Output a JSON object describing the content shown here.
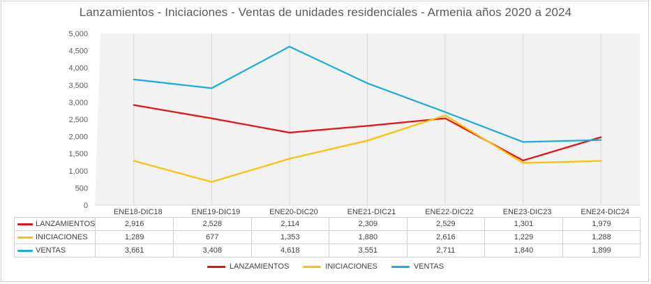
{
  "chart_data": {
    "type": "line",
    "title": "Lanzamientos  - Iniciaciones - Ventas de unidades residenciales  - Armenia años 2020 a 2024",
    "xlabel": "",
    "ylabel": "",
    "categories": [
      "ENE18-DIC18",
      "ENE19-DIC19",
      "ENE20-DIC20",
      "ENE21-DIC21",
      "ENE22-DIC22",
      "ENE23-DIC23",
      "ENE24-DIC24"
    ],
    "ylim": [
      0,
      5000
    ],
    "yticks": [
      "0",
      "500",
      "1,000",
      "1,500",
      "2,000",
      "2,500",
      "3,000",
      "3,500",
      "4,000",
      "4,500",
      "5,000"
    ],
    "grid": "vertical",
    "legend": "bottom",
    "series": [
      {
        "name": "LANZAMIENTOS",
        "color": "#e81010",
        "values": [
          2916,
          2528,
          2114,
          2309,
          2529,
          1301,
          1979
        ],
        "labels": [
          "2,916",
          "2,528",
          "2,114",
          "2,309",
          "2,529",
          "1,301",
          "1,979"
        ]
      },
      {
        "name": "INICIACIONES",
        "color": "#ffc000",
        "values": [
          1289,
          677,
          1353,
          1880,
          2616,
          1229,
          1288
        ],
        "labels": [
          "1,289",
          "677",
          "1,353",
          "1,880",
          "2,616",
          "1,229",
          "1,288"
        ]
      },
      {
        "name": "VENTAS",
        "color": "#1aace0",
        "values": [
          3661,
          3408,
          4618,
          3551,
          2711,
          1840,
          1899
        ],
        "labels": [
          "3,661",
          "3,408",
          "4,618",
          "3,551",
          "2,711",
          "1,840",
          "1,899"
        ]
      }
    ]
  }
}
